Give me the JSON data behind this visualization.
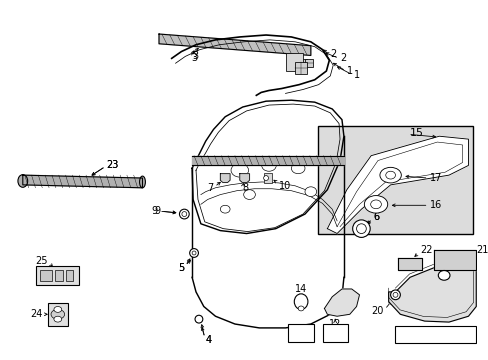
{
  "bg_color": "#ffffff",
  "fig_width": 4.89,
  "fig_height": 3.6,
  "dpi": 100,
  "black": "#000000",
  "gray": "#888888",
  "light_gray": "#cccccc",
  "inset_bg": "#d8d8d8",
  "label_fontsize": 7.0,
  "lw": 0.8
}
